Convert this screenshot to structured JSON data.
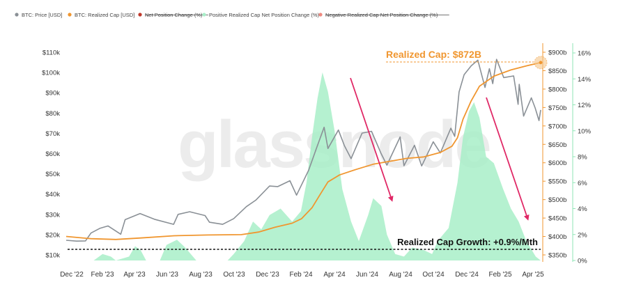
{
  "chart_data": {
    "type": "line",
    "title": "",
    "watermark": "glassnode",
    "legend": {
      "placement": "top-left",
      "items": [
        {
          "label": "BTC: Price [USD]",
          "color": "#8a9096",
          "struck": false
        },
        {
          "label": "BTC: Realized Cap [USD]",
          "color": "#f0962f",
          "struck": false
        },
        {
          "label": "Net Position Change (%)",
          "color": "#c0392b",
          "struck": true
        },
        {
          "label": "Positive Realized Cap Net Position Change (%)",
          "color": "#a8efc8",
          "struck": false
        },
        {
          "label": "Negative Realized Cap Net Position Change (%)",
          "color": "#ef8a80",
          "struck": true
        }
      ]
    },
    "x_axis": {
      "labels": [
        "Dec '22",
        "Feb '23",
        "Apr '23",
        "Jun '23",
        "Aug '23",
        "Oct '23",
        "Dec '23",
        "Feb '24",
        "Apr '24",
        "Jun '24",
        "Aug '24",
        "Oct '24",
        "Dec '24",
        "Feb '25",
        "Apr '25"
      ],
      "range": [
        "2022-12-01",
        "2025-04-10"
      ]
    },
    "y_axis_left": {
      "label": "",
      "range": [
        10000,
        110000
      ],
      "ticks": [
        "$10k",
        "$20k",
        "$30k",
        "$40k",
        "$50k",
        "$60k",
        "$70k",
        "$80k",
        "$90k",
        "$100k",
        "$110k"
      ]
    },
    "y_axis_mid": {
      "label": "",
      "range": [
        350,
        900
      ],
      "ticks": [
        "$350b",
        "$400b",
        "$450b",
        "$500b",
        "$550b",
        "$600b",
        "$650b",
        "$700b",
        "$750b",
        "$800b",
        "$850b",
        "$900b"
      ]
    },
    "y_axis_right": {
      "label": "",
      "range": [
        0,
        16
      ],
      "ticks": [
        "0%",
        "2%",
        "4%",
        "6%",
        "8%",
        "10%",
        "12%",
        "14%",
        "16%"
      ]
    },
    "series": [
      {
        "name": "BTC: Price [USD]",
        "axis": "left",
        "color": "#8a9096",
        "points": [
          [
            "2022-12-01",
            17200
          ],
          [
            "2022-12-20",
            16800
          ],
          [
            "2023-01-05",
            16900
          ],
          [
            "2023-01-15",
            20800
          ],
          [
            "2023-01-31",
            23100
          ],
          [
            "2023-02-15",
            24300
          ],
          [
            "2023-03-10",
            20200
          ],
          [
            "2023-03-18",
            27400
          ],
          [
            "2023-04-14",
            30400
          ],
          [
            "2023-05-10",
            27600
          ],
          [
            "2023-06-14",
            25100
          ],
          [
            "2023-06-22",
            30000
          ],
          [
            "2023-07-13",
            31300
          ],
          [
            "2023-08-10",
            29400
          ],
          [
            "2023-08-18",
            26100
          ],
          [
            "2023-09-11",
            25100
          ],
          [
            "2023-10-01",
            27900
          ],
          [
            "2023-10-24",
            33800
          ],
          [
            "2023-11-10",
            37000
          ],
          [
            "2023-12-05",
            44000
          ],
          [
            "2023-12-20",
            43700
          ],
          [
            "2024-01-11",
            46600
          ],
          [
            "2024-01-23",
            39500
          ],
          [
            "2024-02-14",
            51800
          ],
          [
            "2024-02-28",
            62500
          ],
          [
            "2024-03-13",
            73000
          ],
          [
            "2024-03-20",
            62500
          ],
          [
            "2024-04-08",
            71600
          ],
          [
            "2024-04-19",
            63800
          ],
          [
            "2024-05-01",
            57500
          ],
          [
            "2024-05-21",
            70100
          ],
          [
            "2024-06-07",
            71000
          ],
          [
            "2024-06-24",
            60300
          ],
          [
            "2024-07-05",
            54300
          ],
          [
            "2024-07-29",
            68200
          ],
          [
            "2024-08-05",
            54000
          ],
          [
            "2024-08-24",
            64100
          ],
          [
            "2024-09-06",
            53900
          ],
          [
            "2024-09-27",
            65800
          ],
          [
            "2024-10-10",
            60300
          ],
          [
            "2024-10-29",
            72500
          ],
          [
            "2024-11-05",
            68500
          ],
          [
            "2024-11-13",
            90400
          ],
          [
            "2024-11-22",
            98900
          ],
          [
            "2024-12-05",
            103300
          ],
          [
            "2024-12-17",
            106100
          ],
          [
            "2024-12-30",
            92600
          ],
          [
            "2025-01-07",
            101900
          ],
          [
            "2025-01-13",
            94500
          ],
          [
            "2025-01-20",
            106500
          ],
          [
            "2025-02-02",
            97500
          ],
          [
            "2025-02-20",
            98300
          ],
          [
            "2025-02-28",
            84300
          ],
          [
            "2025-03-02",
            94200
          ],
          [
            "2025-03-10",
            78500
          ],
          [
            "2025-03-24",
            87500
          ],
          [
            "2025-03-31",
            82500
          ],
          [
            "2025-04-07",
            76300
          ],
          [
            "2025-04-10",
            81500
          ]
        ]
      },
      {
        "name": "BTC: Realized Cap [USD]",
        "axis": "mid",
        "color": "#f0962f",
        "points": [
          [
            "2022-12-01",
            400
          ],
          [
            "2023-01-15",
            394
          ],
          [
            "2023-03-01",
            392
          ],
          [
            "2023-04-15",
            396
          ],
          [
            "2023-06-15",
            402
          ],
          [
            "2023-08-15",
            404
          ],
          [
            "2023-10-15",
            405
          ],
          [
            "2023-11-15",
            412
          ],
          [
            "2023-12-15",
            425
          ],
          [
            "2024-01-15",
            436
          ],
          [
            "2024-02-01",
            448
          ],
          [
            "2024-02-20",
            478
          ],
          [
            "2024-03-05",
            512
          ],
          [
            "2024-03-20",
            548
          ],
          [
            "2024-04-10",
            567
          ],
          [
            "2024-05-10",
            582
          ],
          [
            "2024-06-10",
            596
          ],
          [
            "2024-07-10",
            604
          ],
          [
            "2024-08-10",
            612
          ],
          [
            "2024-09-10",
            616
          ],
          [
            "2024-10-10",
            628
          ],
          [
            "2024-10-31",
            645
          ],
          [
            "2024-11-10",
            668
          ],
          [
            "2024-11-20",
            718
          ],
          [
            "2024-12-05",
            768
          ],
          [
            "2024-12-20",
            808
          ],
          [
            "2025-01-15",
            835
          ],
          [
            "2025-02-15",
            852
          ],
          [
            "2025-03-15",
            863
          ],
          [
            "2025-04-10",
            872
          ]
        ]
      },
      {
        "name": "Positive Realized Cap Net Position Change (%)",
        "axis": "right",
        "color": "#a8efc8",
        "type": "area",
        "points": [
          [
            "2022-12-01",
            0
          ],
          [
            "2023-01-20",
            0
          ],
          [
            "2023-02-05",
            0.5
          ],
          [
            "2023-02-20",
            0.3
          ],
          [
            "2023-03-01",
            0
          ],
          [
            "2023-03-25",
            0.3
          ],
          [
            "2023-04-05",
            1.1
          ],
          [
            "2023-04-15",
            0.8
          ],
          [
            "2023-04-25",
            0
          ],
          [
            "2023-05-20",
            0
          ],
          [
            "2023-06-01",
            1.2
          ],
          [
            "2023-06-20",
            1.6
          ],
          [
            "2023-07-05",
            1.0
          ],
          [
            "2023-07-25",
            0
          ],
          [
            "2023-09-20",
            0
          ],
          [
            "2023-10-01",
            0.5
          ],
          [
            "2023-10-20",
            1.5
          ],
          [
            "2023-11-05",
            3.0
          ],
          [
            "2023-11-20",
            2.4
          ],
          [
            "2023-12-05",
            3.5
          ],
          [
            "2023-12-25",
            4.0
          ],
          [
            "2024-01-15",
            3.0
          ],
          [
            "2024-01-31",
            3.8
          ],
          [
            "2024-02-10",
            6.0
          ],
          [
            "2024-02-20",
            9.5
          ],
          [
            "2024-03-01",
            12.5
          ],
          [
            "2024-03-10",
            14.5
          ],
          [
            "2024-03-20",
            13.0
          ],
          [
            "2024-04-01",
            10.0
          ],
          [
            "2024-04-15",
            5.5
          ],
          [
            "2024-05-01",
            3.0
          ],
          [
            "2024-05-15",
            1.5
          ],
          [
            "2024-06-01",
            3.5
          ],
          [
            "2024-06-10",
            4.8
          ],
          [
            "2024-06-25",
            4.2
          ],
          [
            "2024-07-05",
            2.0
          ],
          [
            "2024-07-20",
            0.5
          ],
          [
            "2024-08-05",
            0.3
          ],
          [
            "2024-08-20",
            1.0
          ],
          [
            "2024-09-10",
            0.8
          ],
          [
            "2024-09-25",
            0.5
          ],
          [
            "2024-10-05",
            1.5
          ],
          [
            "2024-10-25",
            2.5
          ],
          [
            "2024-11-10",
            6.0
          ],
          [
            "2024-11-20",
            9.5
          ],
          [
            "2024-12-01",
            11.5
          ],
          [
            "2024-12-10",
            12.2
          ],
          [
            "2024-12-20",
            11.0
          ],
          [
            "2025-01-01",
            8.0
          ],
          [
            "2025-01-15",
            7.5
          ],
          [
            "2025-02-01",
            5.5
          ],
          [
            "2025-02-15",
            4.0
          ],
          [
            "2025-03-01",
            3.0
          ],
          [
            "2025-03-15",
            1.5
          ],
          [
            "2025-04-01",
            0.3
          ],
          [
            "2025-04-10",
            0
          ]
        ]
      }
    ],
    "annotations": {
      "realized_cap_label": "Realized Cap: $872B",
      "growth_label": "Realized Cap Growth: +0.9%/Mth"
    },
    "grid": false
  }
}
